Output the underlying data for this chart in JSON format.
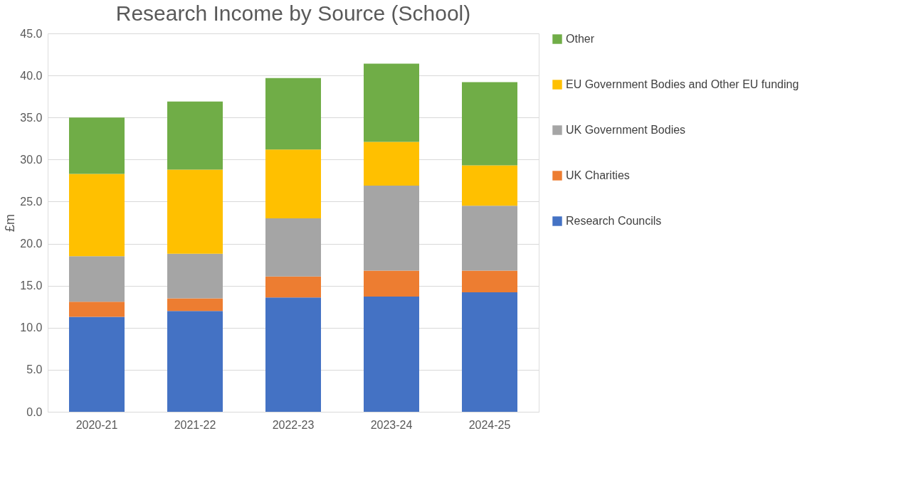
{
  "chart_data": {
    "type": "bar",
    "title": "Research Income by Source (School)",
    "ylabel": "£m",
    "stacked": true,
    "categories": [
      "2020-21",
      "2021-22",
      "2022-23",
      "2023-24",
      "2024-25"
    ],
    "series": [
      {
        "name": "Research Councils",
        "color": "#4472c4",
        "values": [
          11.3,
          12.0,
          13.6,
          13.7,
          14.2
        ]
      },
      {
        "name": "UK Charities",
        "color": "#ed7d31",
        "values": [
          1.8,
          1.5,
          2.5,
          3.1,
          2.6
        ]
      },
      {
        "name": "UK Government Bodies",
        "color": "#a5a5a5",
        "values": [
          5.4,
          5.3,
          6.9,
          10.1,
          7.7
        ]
      },
      {
        "name": "EU Government Bodies and Other EU funding",
        "color": "#ffc000",
        "values": [
          9.8,
          10.0,
          8.2,
          5.2,
          4.8
        ]
      },
      {
        "name": "Other",
        "color": "#70ad47",
        "values": [
          6.7,
          8.1,
          8.5,
          9.3,
          9.9
        ]
      }
    ],
    "ylim": [
      0,
      45
    ],
    "yticks": [
      {
        "value": 0,
        "label": "0.0"
      },
      {
        "value": 5,
        "label": "5.0"
      },
      {
        "value": 10,
        "label": "10.0"
      },
      {
        "value": 15,
        "label": "15.0"
      },
      {
        "value": 20,
        "label": "20.0"
      },
      {
        "value": 25,
        "label": "25.0"
      },
      {
        "value": 30,
        "label": "30.0"
      },
      {
        "value": 35,
        "label": "35.0"
      },
      {
        "value": 40,
        "label": "40.0"
      },
      {
        "value": 45,
        "label": "45.0"
      }
    ],
    "grid": "y",
    "legend": "right"
  }
}
